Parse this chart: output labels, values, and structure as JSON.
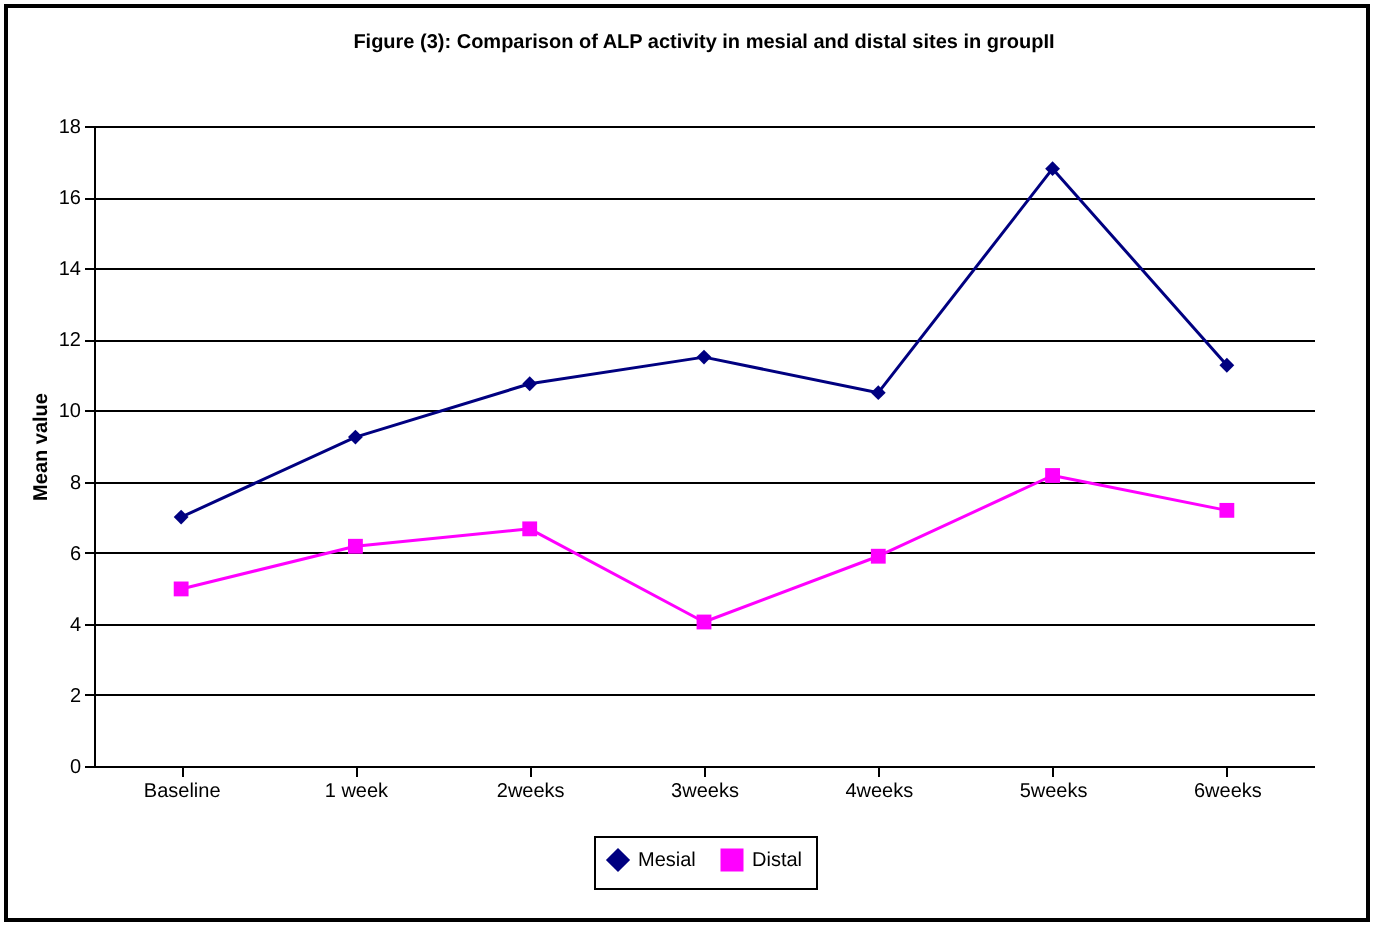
{
  "chart_data": {
    "type": "line",
    "title": "Figure (3): Comparison of ALP activity in mesial and distal sites in groupII",
    "ylabel": "Mean value",
    "categories": [
      "Baseline",
      "1 week",
      "2weeks",
      "3weeks",
      "4weeks",
      "5weeks",
      "6weeks"
    ],
    "series": [
      {
        "name": "Mesial",
        "color": "#000080",
        "marker": "diamond",
        "values": [
          7.0,
          9.25,
          10.75,
          11.5,
          10.5,
          16.8,
          11.27
        ]
      },
      {
        "name": "Distal",
        "color": "#ff00ff",
        "marker": "square",
        "values": [
          4.98,
          6.18,
          6.67,
          4.05,
          5.9,
          8.17,
          7.19
        ]
      }
    ],
    "ylim": [
      0,
      18
    ],
    "yticks": [
      0,
      2,
      4,
      6,
      8,
      10,
      12,
      14,
      16,
      18
    ],
    "grid": "y",
    "legend": "bottom"
  }
}
